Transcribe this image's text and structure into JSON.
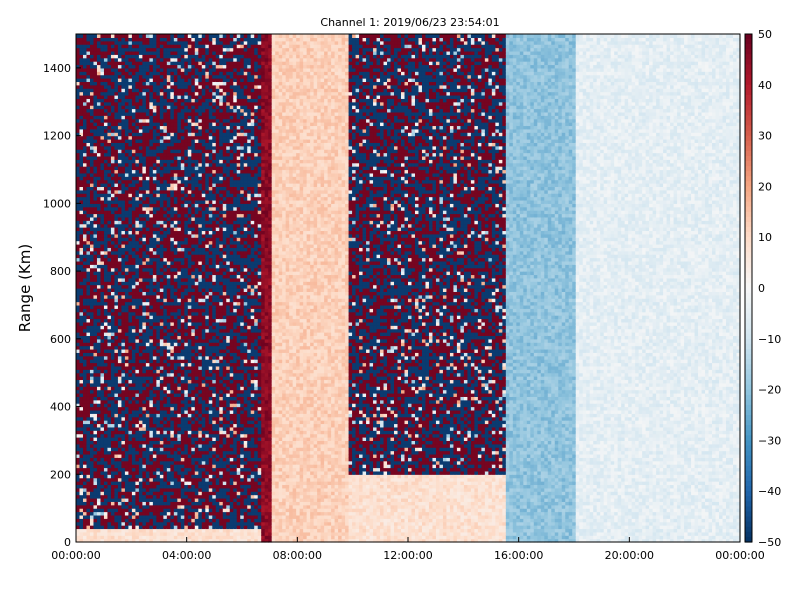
{
  "chart_data": {
    "type": "heatmap",
    "title": "Channel 1: 2019/06/23 23:54:01",
    "xlabel": "",
    "ylabel": "Range (Km)",
    "x_ticks": [
      "00:00:00",
      "04:00:00",
      "08:00:00",
      "12:00:00",
      "16:00:00",
      "20:00:00",
      "00:00:00"
    ],
    "x_range_hours": [
      0,
      24
    ],
    "y_ticks": [
      0,
      200,
      400,
      600,
      800,
      1000,
      1200,
      1400
    ],
    "ylim": [
      0,
      1500
    ],
    "colorbar": {
      "colormap": "RdBu_r",
      "vmin": -50,
      "vmax": 50,
      "ticks": [
        50,
        40,
        30,
        20,
        10,
        0,
        -10,
        -20,
        -30,
        -40,
        -50
      ]
    },
    "grid": false,
    "colors": {
      "low": "#053061",
      "mid": "#f7f7f7",
      "high": "#67001f"
    },
    "regions": [
      {
        "label": "noise",
        "t_start": 0.0,
        "t_end": 6.6,
        "r_start": 40,
        "r_end": 1500,
        "description_value_range": [
          -50,
          50
        ]
      },
      {
        "label": "strong positive boundary",
        "t_start": 6.6,
        "t_end": 7.0,
        "r_start": 0,
        "r_end": 1500,
        "value": 45
      },
      {
        "label": "positive band",
        "t_start": 7.0,
        "t_end": 9.8,
        "r_start": 0,
        "r_end": 1500,
        "value": 12
      },
      {
        "label": "noise",
        "t_start": 9.8,
        "t_end": 15.5,
        "r_start": 200,
        "r_end": 1500,
        "description_value_range": [
          -50,
          50
        ]
      },
      {
        "label": "negative band",
        "t_start": 15.5,
        "t_end": 18.0,
        "r_start": 0,
        "r_end": 1500,
        "value": -20
      },
      {
        "label": "near zero",
        "t_start": 18.0,
        "t_end": 24.0,
        "r_start": 0,
        "r_end": 1500,
        "value": -5
      }
    ]
  }
}
